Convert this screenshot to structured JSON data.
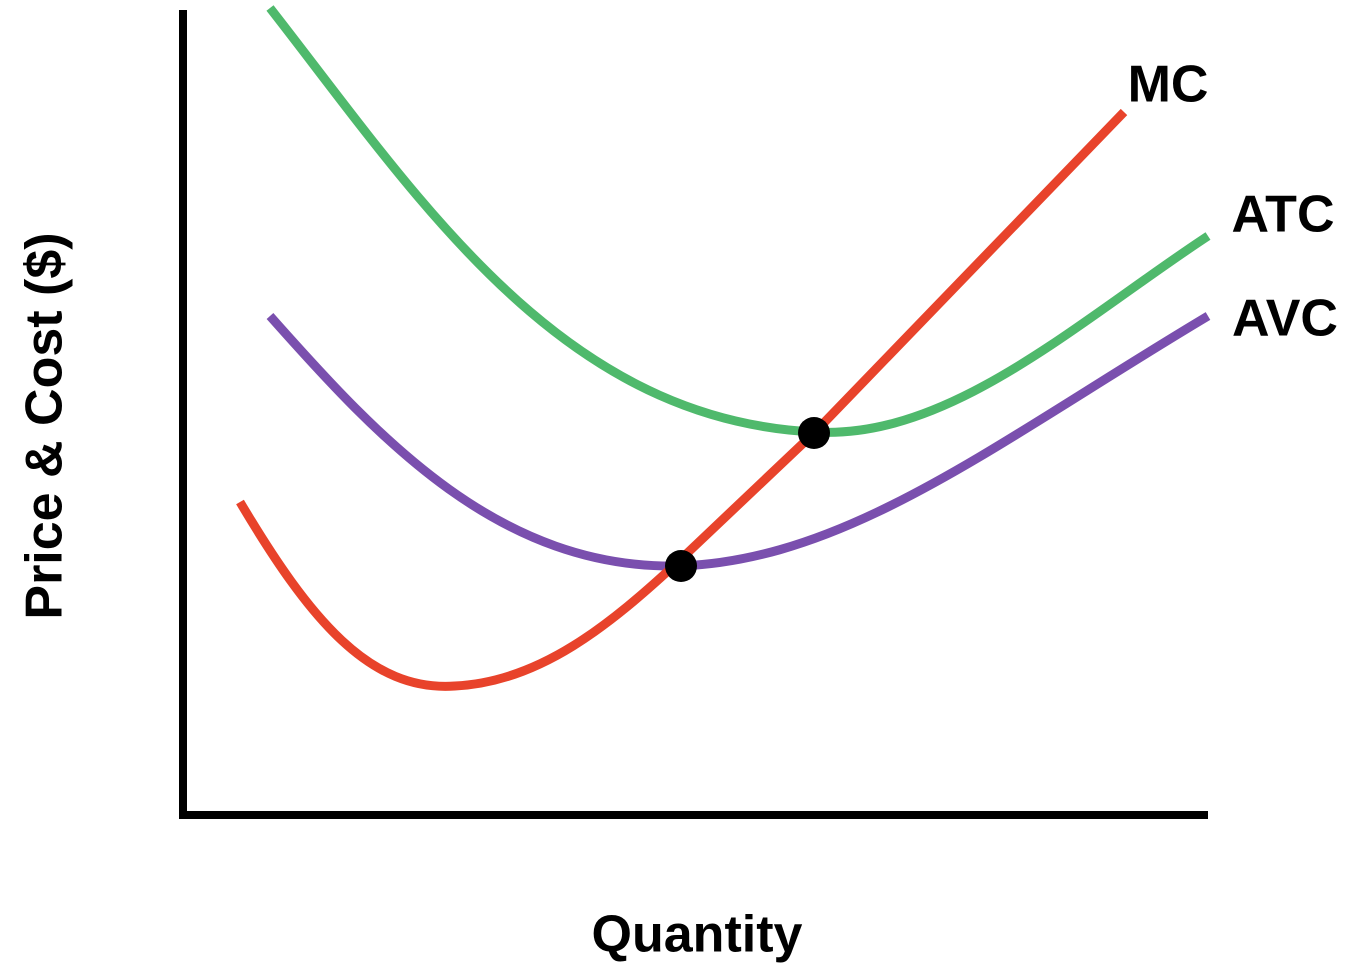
{
  "axes": {
    "y_label": "Price & Cost ($)",
    "x_label": "Quantity"
  },
  "curves": [
    {
      "label": "MC"
    },
    {
      "label": "ATC"
    },
    {
      "label": "AVC"
    }
  ]
}
